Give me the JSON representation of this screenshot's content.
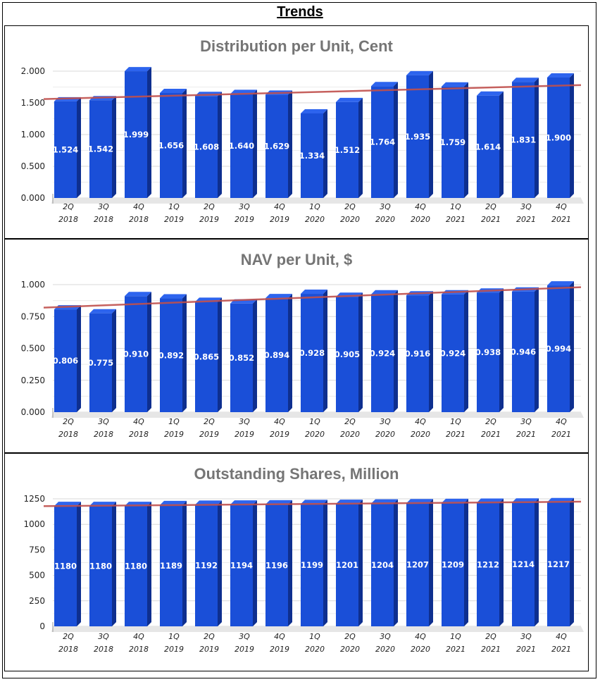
{
  "page": {
    "title": "Trends"
  },
  "colors": {
    "bar_front": "#1a4fd8",
    "bar_side": "#0e2f8f",
    "bar_top": "#2d64ee",
    "trend": "#c0504d",
    "grid": "#d9d9d9",
    "floor": "#e6e6e6"
  },
  "x_labels": [
    {
      "q": "2Q",
      "y": "2018"
    },
    {
      "q": "3Q",
      "y": "2018"
    },
    {
      "q": "4Q",
      "y": "2018"
    },
    {
      "q": "1Q",
      "y": "2019"
    },
    {
      "q": "2Q",
      "y": "2019"
    },
    {
      "q": "3Q",
      "y": "2019"
    },
    {
      "q": "4Q",
      "y": "2019"
    },
    {
      "q": "1Q",
      "y": "2020"
    },
    {
      "q": "2Q",
      "y": "2020"
    },
    {
      "q": "3Q",
      "y": "2020"
    },
    {
      "q": "4Q",
      "y": "2020"
    },
    {
      "q": "1Q",
      "y": "2021"
    },
    {
      "q": "2Q",
      "y": "2021"
    },
    {
      "q": "3Q",
      "y": "2021"
    },
    {
      "q": "4Q",
      "y": "2021"
    }
  ],
  "chart_data": [
    {
      "type": "bar",
      "title": "Distribution per Unit, Cent",
      "categories": [
        "2Q 2018",
        "3Q 2018",
        "4Q 2018",
        "1Q 2019",
        "2Q 2019",
        "3Q 2019",
        "4Q 2019",
        "1Q 2020",
        "2Q 2020",
        "3Q 2020",
        "4Q 2020",
        "1Q 2021",
        "2Q 2021",
        "3Q 2021",
        "4Q 2021"
      ],
      "values": [
        1.524,
        1.542,
        1.999,
        1.656,
        1.608,
        1.64,
        1.629,
        1.334,
        1.512,
        1.764,
        1.935,
        1.759,
        1.614,
        1.831,
        1.9
      ],
      "labels": [
        "1.524",
        "1.542",
        "1.999",
        "1.656",
        "1.608",
        "1.640",
        "1.629",
        "1.334",
        "1.512",
        "1.764",
        "1.935",
        "1.759",
        "1.614",
        "1.831",
        "1.900"
      ],
      "ylim": [
        0,
        2
      ],
      "yticks": [
        0,
        0.5,
        1,
        1.5,
        2
      ],
      "ytick_labels": [
        "0.000",
        "0.500",
        "1.000",
        "1.500",
        "2.000"
      ],
      "trendline": [
        1.56,
        1.78
      ],
      "xlabel": "",
      "ylabel": ""
    },
    {
      "type": "bar",
      "title": "NAV per Unit, $",
      "categories": [
        "2Q 2018",
        "3Q 2018",
        "4Q 2018",
        "1Q 2019",
        "2Q 2019",
        "3Q 2019",
        "4Q 2019",
        "1Q 2020",
        "2Q 2020",
        "3Q 2020",
        "4Q 2020",
        "1Q 2021",
        "2Q 2021",
        "3Q 2021",
        "4Q 2021"
      ],
      "values": [
        0.806,
        0.775,
        0.91,
        0.892,
        0.865,
        0.852,
        0.894,
        0.928,
        0.905,
        0.924,
        0.916,
        0.924,
        0.938,
        0.946,
        0.994
      ],
      "labels": [
        "0.806",
        "0.775",
        "0.910",
        "0.892",
        "0.865",
        "0.852",
        "0.894",
        "0.928",
        "0.905",
        "0.924",
        "0.916",
        "0.924",
        "0.938",
        "0.946",
        "0.994"
      ],
      "ylim": [
        0,
        1
      ],
      "yticks": [
        0,
        0.25,
        0.5,
        0.75,
        1
      ],
      "ytick_labels": [
        "0.000",
        "0.250",
        "0.500",
        "0.750",
        "1.000"
      ],
      "trendline": [
        0.82,
        0.98
      ],
      "xlabel": "",
      "ylabel": ""
    },
    {
      "type": "bar",
      "title": "Outstanding Shares, Million",
      "categories": [
        "2Q 2018",
        "3Q 2018",
        "4Q 2018",
        "1Q 2019",
        "2Q 2019",
        "3Q 2019",
        "4Q 2019",
        "1Q 2020",
        "2Q 2020",
        "3Q 2020",
        "4Q 2020",
        "1Q 2021",
        "2Q 2021",
        "3Q 2021",
        "4Q 2021"
      ],
      "values": [
        1180,
        1180,
        1180,
        1189,
        1192,
        1194,
        1196,
        1199,
        1201,
        1204,
        1207,
        1209,
        1212,
        1214,
        1217
      ],
      "labels": [
        "1180",
        "1180",
        "1180",
        "1189",
        "1192",
        "1194",
        "1196",
        "1199",
        "1201",
        "1204",
        "1207",
        "1209",
        "1212",
        "1214",
        "1217"
      ],
      "ylim": [
        0,
        1250
      ],
      "yticks": [
        0,
        250,
        500,
        750,
        1000,
        1250
      ],
      "ytick_labels": [
        "0",
        "250",
        "500",
        "750",
        "1000",
        "1250"
      ],
      "trendline": [
        1178,
        1222
      ],
      "xlabel": "",
      "ylabel": ""
    }
  ]
}
